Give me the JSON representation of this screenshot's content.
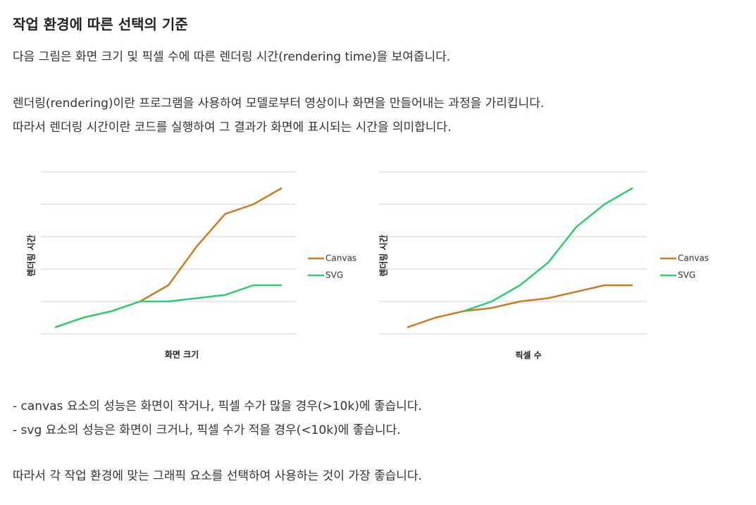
{
  "title": "작업 환경에 따른 선택의 기준",
  "intro": [
    "다음 그림은 화면 크기 및 픽셀 수에 따른 렌더링 시간(rendering time)을 보여줍니다.",
    "렌더링(rendering)이란 프로그램을 사용하여 모델로부터 영상이나 화면을 만들어내는 과정을 가리킵니다.",
    "따라서 렌더링 시간이란 코드를 실행하여 그 결과가 화면에 표시되는 시간을 의미합니다."
  ],
  "chart_data": [
    {
      "type": "line",
      "xlabel": "화면 크기",
      "ylabel": "렌더링 시간",
      "categories": [
        null,
        null,
        null,
        null,
        null,
        null,
        null,
        null,
        null
      ],
      "series": [
        {
          "name": "Canvas",
          "color": "#d07a1e",
          "values": [
            0.2,
            0.5,
            0.7,
            1.0,
            1.5,
            2.7,
            3.7,
            4.0,
            4.5
          ]
        },
        {
          "name": "SVG",
          "color": "#2ecc71",
          "values": [
            0.2,
            0.5,
            0.7,
            1.0,
            1.0,
            1.1,
            1.2,
            1.5,
            1.5
          ]
        }
      ],
      "ylim": [
        0,
        5
      ],
      "yticks": [
        0,
        1,
        2,
        3,
        4,
        5
      ],
      "grid": true,
      "legend": "right"
    },
    {
      "type": "line",
      "xlabel": "픽셀 수",
      "ylabel": "렌더링 시간",
      "categories": [
        null,
        null,
        null,
        null,
        null,
        null,
        null,
        null,
        null
      ],
      "series": [
        {
          "name": "Canvas",
          "color": "#d07a1e",
          "values": [
            0.2,
            0.5,
            0.7,
            0.8,
            1.0,
            1.1,
            1.3,
            1.5,
            1.5
          ]
        },
        {
          "name": "SVG",
          "color": "#2ecc71",
          "values": [
            null,
            null,
            0.7,
            1.0,
            1.5,
            2.2,
            3.3,
            4.0,
            4.5
          ]
        }
      ],
      "ylim": [
        0,
        5
      ],
      "yticks": [
        0,
        1,
        2,
        3,
        4,
        5
      ],
      "grid": true,
      "legend": "right"
    }
  ],
  "notes": [
    "- canvas 요소의 성능은 화면이 작거나, 픽셀 수가 많을 경우(>10k)에 좋습니다.",
    "- svg 요소의 성능은 화면이 크거나, 픽셀 수가 적을 경우(<10k)에 좋습니다.",
    "따라서 각 작업 환경에 맞는 그래픽 요소를 선택하여 사용하는 것이 가장 좋습니다."
  ]
}
